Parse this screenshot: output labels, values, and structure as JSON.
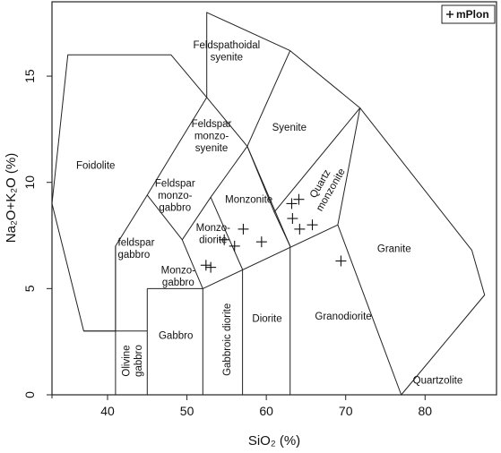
{
  "chart_data": {
    "type": "scatter",
    "diagram": "TAS",
    "xlim": [
      33,
      89
    ],
    "ylim": [
      0,
      18.5
    ],
    "xticks": [
      40,
      50,
      60,
      70,
      80
    ],
    "yticks": [
      0,
      5,
      10,
      15
    ],
    "xticklabels": [
      "40",
      "50",
      "60",
      "70",
      "80"
    ],
    "yticklabels": [
      "0",
      "5",
      "10",
      "15"
    ],
    "xlabel": "SiO₂ (%)",
    "ylabel": "Na₂O+K₂O (%)",
    "grid": false,
    "legend_position": "top-right",
    "legend": [
      "mPlon"
    ],
    "series": [
      {
        "name": "mPlon",
        "marker": "+",
        "points": [
          [
            52.4,
            6.1
          ],
          [
            53.0,
            6.0
          ],
          [
            54.7,
            7.3
          ],
          [
            56.0,
            7.0
          ],
          [
            57.1,
            7.8
          ],
          [
            59.4,
            7.2
          ],
          [
            63.2,
            9.0
          ],
          [
            64.1,
            9.2
          ],
          [
            63.3,
            8.3
          ],
          [
            64.2,
            7.8
          ],
          [
            65.8,
            8.0
          ],
          [
            69.4,
            6.3
          ]
        ]
      }
    ],
    "boundaries": [
      [
        [
          41,
          3
        ],
        [
          41,
          7
        ],
        [
          45,
          9.4
        ],
        [
          48.4,
          11.5
        ],
        [
          52.5,
          14
        ],
        [
          48,
          16
        ],
        [
          35,
          16
        ],
        [
          33,
          9
        ],
        [
          37,
          3
        ],
        [
          41,
          3
        ]
      ],
      [
        [
          41,
          0
        ],
        [
          41,
          7
        ]
      ],
      [
        [
          45,
          0
        ],
        [
          45,
          5
        ]
      ],
      [
        [
          45,
          5
        ],
        [
          52,
          5
        ],
        [
          69,
          8
        ]
      ],
      [
        [
          52,
          0
        ],
        [
          52,
          5
        ]
      ],
      [
        [
          57,
          0
        ],
        [
          57,
          5.9
        ]
      ],
      [
        [
          63,
          0
        ],
        [
          63,
          7
        ]
      ],
      [
        [
          52,
          5
        ],
        [
          49.4,
          7.3
        ],
        [
          45,
          9.4
        ]
      ],
      [
        [
          57,
          5.9
        ],
        [
          53,
          9.3
        ],
        [
          49.4,
          7.3
        ]
      ],
      [
        [
          63,
          7
        ],
        [
          57.6,
          11.7
        ],
        [
          53,
          9.3
        ]
      ],
      [
        [
          69,
          8
        ],
        [
          71.8,
          13.5
        ],
        [
          61,
          8.6
        ],
        [
          57.6,
          11.7
        ],
        [
          52.5,
          14
        ]
      ],
      [
        [
          61,
          8.6
        ],
        [
          63,
          7
        ]
      ],
      [
        [
          77,
          0
        ],
        [
          69,
          8
        ]
      ],
      [
        [
          71.8,
          13.5
        ],
        [
          85.9,
          6.8
        ],
        [
          87.5,
          4.7
        ],
        [
          77,
          0
        ]
      ],
      [
        [
          71.8,
          13.5
        ],
        [
          63,
          16.2
        ],
        [
          57.6,
          11.7
        ]
      ],
      [
        [
          52.5,
          14
        ],
        [
          52.5,
          18
        ],
        [
          63,
          16.2
        ]
      ],
      [
        [
          37,
          3
        ],
        [
          45,
          3
        ]
      ]
    ],
    "fields": [
      {
        "label": "Foidolite",
        "x": 38.5,
        "y": 10.8
      },
      {
        "label": "feldspar\ngabbro",
        "x": 41.3,
        "y": 6.9,
        "anchor": "start"
      },
      {
        "label": "Olivine\ngabbro",
        "x": 43.1,
        "y": 1.6,
        "rotate": -90
      },
      {
        "label": "Gabbro",
        "x": 48.6,
        "y": 2.8
      },
      {
        "label": "Monzo-\ngabbro",
        "x": 48.9,
        "y": 5.6
      },
      {
        "label": "Feldspar\nmonzo-\ngabbro",
        "x": 48.5,
        "y": 9.4
      },
      {
        "label": "Monzo-\ndiorite",
        "x": 53.3,
        "y": 7.6
      },
      {
        "label": "Feldspar\nmonzo-\nsyenite",
        "x": 53.1,
        "y": 12.2
      },
      {
        "label": "Feldspathoidal\nsyenite",
        "x": 55.0,
        "y": 16.2
      },
      {
        "label": "Monzonite",
        "x": 57.8,
        "y": 9.2
      },
      {
        "label": "Syenite",
        "x": 62.9,
        "y": 12.6
      },
      {
        "label": "Quartz\nmonzonite",
        "x": 67.4,
        "y": 9.8,
        "rotate": -60
      },
      {
        "label": "Granite",
        "x": 76.1,
        "y": 6.9
      },
      {
        "label": "Granodiorite",
        "x": 69.7,
        "y": 3.7
      },
      {
        "label": "Diorite",
        "x": 60.1,
        "y": 3.6
      },
      {
        "label": "Gabbroic diorite",
        "x": 55.0,
        "y": 2.6,
        "rotate": -90
      },
      {
        "label": "Quartzolite",
        "x": 81.6,
        "y": 0.7
      }
    ]
  }
}
